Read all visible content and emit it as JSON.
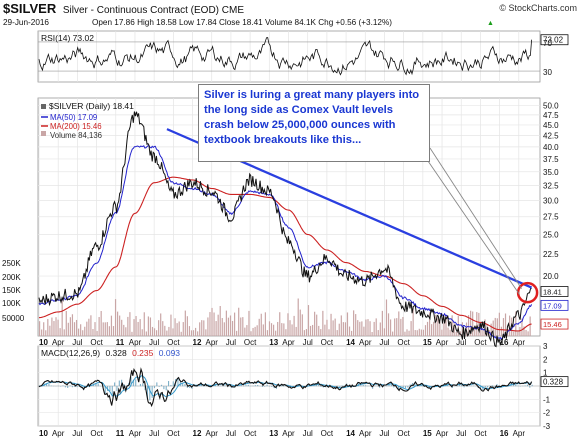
{
  "header": {
    "ticker": "$SILVER",
    "name": "Silver - Continuous Contract (EOD) CME",
    "date": "29-Jun-2016",
    "ohlc": "Open 17.86  High 18.58  Low 17.84  Close 18.41  Volume 84.1K  Chg +0.56 (+3.12%)",
    "chg_arrow": "▲",
    "source": "© StockCharts.com"
  },
  "annotation": {
    "text": "Silver is luring a great many players into the long side as Comex Vault levels crash below 25,000,000 ounces with textbook breakouts like this..."
  },
  "colors": {
    "price": "#111111",
    "ma50": "#2222cc",
    "ma200": "#cc2222",
    "volume": "#c9a6a6",
    "trendline": "#2a3fe0",
    "callout": "#e02020",
    "macd": "#111111",
    "signal": "#3399cc",
    "hist": "#7fb0c8",
    "rsi_fill": "#cfcfcf"
  },
  "chart_data": [
    {
      "type": "line",
      "panel": "rsi",
      "label": "RSI(14) 73.02",
      "series": [
        {
          "name": "RSI(14)",
          "last": 73.02
        }
      ],
      "levels": [
        30,
        70
      ],
      "ylim": [
        15,
        85
      ],
      "yticks": [
        {
          "v": 73.02,
          "label": "73.02",
          "badge": true
        },
        {
          "v": 70,
          "label": "70"
        },
        {
          "v": 30,
          "label": "30"
        }
      ]
    },
    {
      "type": "line",
      "panel": "price",
      "scale": "log",
      "legend": [
        {
          "label": "$SILVER (Daily) 18.41",
          "key": "price"
        },
        {
          "label": "MA(50) 17.09",
          "key": "ma50"
        },
        {
          "label": "MA(200) 15.46",
          "key": "ma200"
        },
        {
          "label": "Volume 84,136",
          "key": "volume"
        }
      ],
      "x": [
        "2010-01",
        "2010-04",
        "2010-07",
        "2010-10",
        "2011-01",
        "2011-04",
        "2011-07",
        "2011-10",
        "2012-01",
        "2012-04",
        "2012-07",
        "2012-10",
        "2013-01",
        "2013-04",
        "2013-07",
        "2013-10",
        "2014-01",
        "2014-04",
        "2014-07",
        "2014-10",
        "2015-01",
        "2015-04",
        "2015-07",
        "2015-10",
        "2016-01",
        "2016-04",
        "2016-06"
      ],
      "series": [
        {
          "name": "$SILVER",
          "values": [
            17.5,
            18.0,
            18.2,
            23.5,
            29.0,
            47.5,
            38.0,
            31.0,
            33.0,
            31.5,
            27.5,
            33.5,
            31.5,
            24.0,
            20.0,
            22.0,
            20.0,
            19.5,
            20.8,
            17.0,
            16.5,
            16.0,
            14.7,
            15.4,
            14.0,
            16.2,
            18.41
          ]
        },
        {
          "name": "MA(50)",
          "values": [
            17.2,
            17.6,
            18.0,
            21.5,
            28.0,
            40.0,
            40.0,
            33.0,
            32.0,
            31.0,
            28.0,
            31.5,
            31.0,
            26.0,
            21.0,
            21.5,
            20.5,
            19.6,
            20.0,
            17.8,
            16.8,
            16.3,
            15.3,
            15.1,
            14.3,
            15.5,
            17.09
          ]
        },
        {
          "name": "MA(200)",
          "values": [
            16.0,
            16.5,
            17.2,
            18.5,
            21.0,
            28.0,
            33.0,
            34.0,
            33.5,
            32.0,
            31.0,
            31.0,
            30.5,
            28.5,
            25.0,
            23.0,
            21.5,
            20.5,
            20.0,
            19.2,
            18.0,
            17.0,
            16.2,
            15.6,
            15.0,
            14.9,
            15.46
          ]
        }
      ],
      "trendline": {
        "from": [
          "2011-09",
          44.0
        ],
        "to": [
          "2016-06",
          18.8
        ]
      },
      "ylim": [
        14.5,
        52
      ],
      "yticks": [
        {
          "v": 50,
          "label": "50.0"
        },
        {
          "v": 47.5,
          "label": "47.5"
        },
        {
          "v": 45,
          "label": "45.0"
        },
        {
          "v": 42.5,
          "label": "42.5"
        },
        {
          "v": 40,
          "label": "40.0"
        },
        {
          "v": 37.5,
          "label": "37.5"
        },
        {
          "v": 35,
          "label": "35.0"
        },
        {
          "v": 32.5,
          "label": "32.5"
        },
        {
          "v": 30,
          "label": "30.0"
        },
        {
          "v": 27.5,
          "label": "27.5"
        },
        {
          "v": 25,
          "label": "25.0"
        },
        {
          "v": 22.5,
          "label": "22.5"
        },
        {
          "v": 20,
          "label": "20.0"
        },
        {
          "v": 18.41,
          "label": "18.41",
          "badge": "price"
        },
        {
          "v": 17.09,
          "label": "17.09",
          "badge": "ma50"
        },
        {
          "v": 15.46,
          "label": "15.46",
          "badge": "ma200"
        }
      ],
      "volume_yticks": [
        "250K",
        "200K",
        "150K",
        "100K",
        "50000"
      ]
    },
    {
      "type": "line",
      "panel": "macd",
      "label": "MACD(12,26,9)",
      "label_values": [
        "0.328",
        "0.235",
        "0.093"
      ],
      "series": [
        {
          "name": "MACD",
          "last": 0.328
        },
        {
          "name": "Signal",
          "last": 0.235
        },
        {
          "name": "Histogram",
          "last": 0.093
        }
      ],
      "ylim": [
        -3,
        3
      ],
      "yticks": [
        {
          "v": 3,
          "label": "3"
        },
        {
          "v": 2,
          "label": "2"
        },
        {
          "v": 1,
          "label": "1"
        },
        {
          "v": 0.328,
          "label": "0.328",
          "badge": true
        },
        {
          "v": -1,
          "label": "-1"
        },
        {
          "v": -2,
          "label": "-2"
        },
        {
          "v": -3,
          "label": "-3"
        }
      ]
    }
  ],
  "x_axis": {
    "ticks": [
      {
        "m": 0,
        "label": "10",
        "bold": true
      },
      {
        "m": 3,
        "label": "Apr"
      },
      {
        "m": 6,
        "label": "Jul"
      },
      {
        "m": 9,
        "label": "Oct"
      },
      {
        "m": 12,
        "label": "11",
        "bold": true
      },
      {
        "m": 15,
        "label": "Apr"
      },
      {
        "m": 18,
        "label": "Jul"
      },
      {
        "m": 21,
        "label": "Oct"
      },
      {
        "m": 24,
        "label": "12",
        "bold": true
      },
      {
        "m": 27,
        "label": "Apr"
      },
      {
        "m": 30,
        "label": "Jul"
      },
      {
        "m": 33,
        "label": "Oct"
      },
      {
        "m": 36,
        "label": "13",
        "bold": true
      },
      {
        "m": 39,
        "label": "Apr"
      },
      {
        "m": 42,
        "label": "Jul"
      },
      {
        "m": 45,
        "label": "Oct"
      },
      {
        "m": 48,
        "label": "14",
        "bold": true
      },
      {
        "m": 51,
        "label": "Apr"
      },
      {
        "m": 54,
        "label": "Jul"
      },
      {
        "m": 57,
        "label": "Oct"
      },
      {
        "m": 60,
        "label": "15",
        "bold": true
      },
      {
        "m": 63,
        "label": "Apr"
      },
      {
        "m": 66,
        "label": "Jul"
      },
      {
        "m": 69,
        "label": "Oct"
      },
      {
        "m": 72,
        "label": "16",
        "bold": true
      },
      {
        "m": 75,
        "label": "Apr"
      }
    ]
  }
}
